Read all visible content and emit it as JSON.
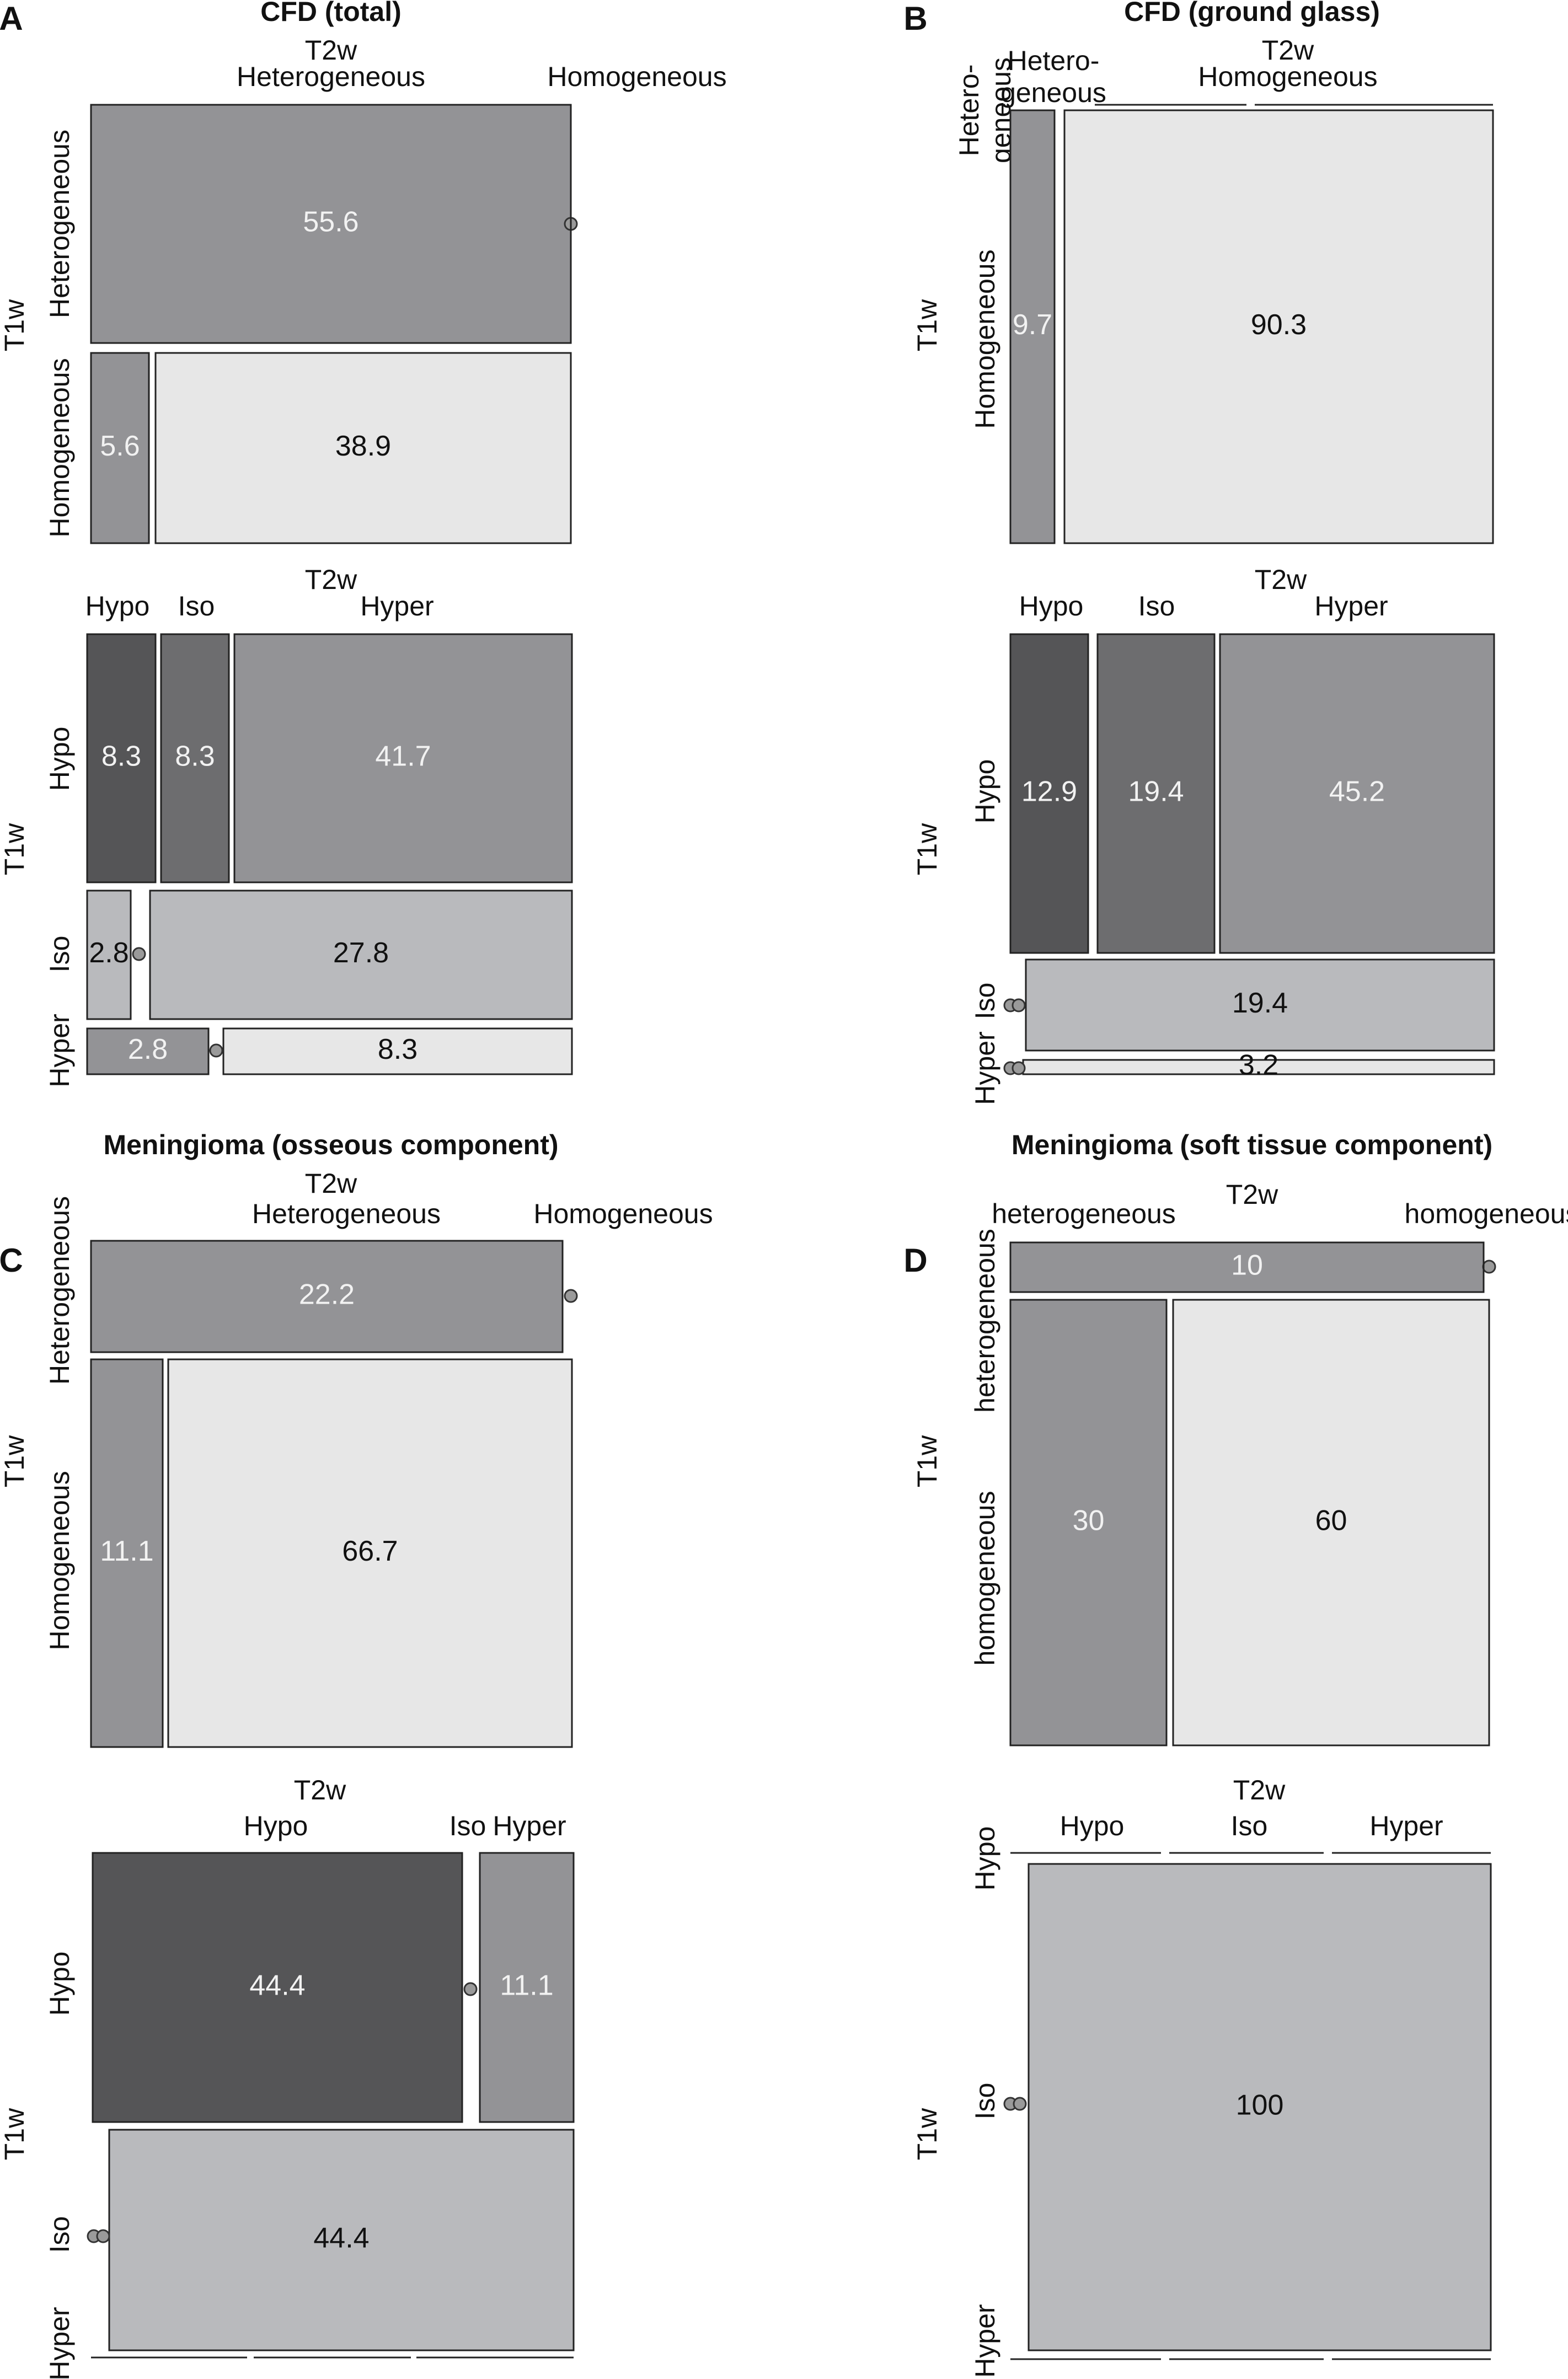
{
  "palette": {
    "darkest": "#555557",
    "dark": "#6d6d6f",
    "mid": "#939396",
    "light": "#b9babd",
    "lightest": "#e7e7e7",
    "text_on_dark": "#f2f2f2",
    "text_on_light": "#111111"
  },
  "chart_data": [
    {
      "panel": "A",
      "type": "mosaic",
      "title": "CFD (total)",
      "xlabel": "T2w",
      "ylabel": "T1w",
      "rows": [
        "Heterogeneous",
        "Homogeneous"
      ],
      "columns": [
        "Heterogeneous",
        "Homogeneous"
      ],
      "values": [
        [
          55.6,
          0
        ],
        [
          5.6,
          38.9
        ]
      ],
      "value_labels": [
        [
          "55.6",
          ""
        ],
        [
          "5.6",
          "38.9"
        ]
      ]
    },
    {
      "panel": "A",
      "type": "mosaic",
      "title": "",
      "xlabel": "T2w",
      "ylabel": "T1w",
      "rows": [
        "Hypo",
        "Iso",
        "Hyper"
      ],
      "columns": [
        "Hypo",
        "Iso",
        "Hyper"
      ],
      "values": [
        [
          8.3,
          8.3,
          41.7
        ],
        [
          2.8,
          0,
          27.8
        ],
        [
          2.8,
          0,
          8.3
        ]
      ],
      "value_labels": [
        [
          "8.3",
          "8.3",
          "41.7"
        ],
        [
          "2.8",
          "",
          "27.8"
        ],
        [
          "2.8",
          "",
          "8.3"
        ]
      ]
    },
    {
      "panel": "B",
      "type": "mosaic",
      "title": "CFD (ground glass)",
      "xlabel": "T2w",
      "ylabel": "T1w",
      "rows": [
        "Hetero-\ngeneous",
        "Homogeneous"
      ],
      "columns": [
        "Hetero-\ngeneous",
        "Homogeneous"
      ],
      "values": [
        [
          0,
          0
        ],
        [
          9.7,
          90.3
        ]
      ],
      "value_labels": [
        [
          "",
          ""
        ],
        [
          "9.7",
          "90.3"
        ]
      ]
    },
    {
      "panel": "B",
      "type": "mosaic",
      "title": "",
      "xlabel": "T2w",
      "ylabel": "T1w",
      "rows": [
        "Hypo",
        "Iso",
        "Hyper"
      ],
      "columns": [
        "Hypo",
        "Iso",
        "Hyper"
      ],
      "values": [
        [
          12.9,
          19.4,
          45.2
        ],
        [
          0,
          0,
          19.4
        ],
        [
          0,
          0,
          3.2
        ]
      ],
      "value_labels": [
        [
          "12.9",
          "19.4",
          "45.2"
        ],
        [
          "",
          "",
          "19.4"
        ],
        [
          "",
          "",
          "3.2"
        ]
      ]
    },
    {
      "panel": "C",
      "type": "mosaic",
      "title": "Meningioma (osseous component)",
      "xlabel": "T2w",
      "ylabel": "T1w",
      "rows": [
        "Heterogeneous",
        "Homogeneous"
      ],
      "columns": [
        "Heterogeneous",
        "Homogeneous"
      ],
      "values": [
        [
          22.2,
          0
        ],
        [
          11.1,
          66.7
        ]
      ],
      "value_labels": [
        [
          "22.2",
          ""
        ],
        [
          "11.1",
          "66.7"
        ]
      ]
    },
    {
      "panel": "C",
      "type": "mosaic",
      "title": "",
      "xlabel": "T2w",
      "ylabel": "T1w",
      "rows": [
        "Hypo",
        "Iso",
        "Hyper"
      ],
      "columns": [
        "Hypo",
        "Iso",
        "Hyper"
      ],
      "values": [
        [
          44.4,
          0,
          11.1
        ],
        [
          0,
          0,
          44.4
        ],
        [
          0,
          0,
          0
        ]
      ],
      "value_labels": [
        [
          "44.4",
          "",
          "11.1"
        ],
        [
          "",
          "",
          "44.4"
        ],
        [
          "",
          "",
          ""
        ]
      ]
    },
    {
      "panel": "D",
      "type": "mosaic",
      "title": "Meningioma (soft tissue component)",
      "xlabel": "T2w",
      "ylabel": "T1w",
      "rows": [
        "heterogeneous",
        "homogeneous"
      ],
      "columns": [
        "heterogeneous",
        "homogeneous"
      ],
      "values": [
        [
          10,
          0
        ],
        [
          30,
          60
        ]
      ],
      "value_labels": [
        [
          "10",
          ""
        ],
        [
          "30",
          "60"
        ]
      ]
    },
    {
      "panel": "D",
      "type": "mosaic",
      "title": "",
      "xlabel": "T2w",
      "ylabel": "T1w",
      "rows": [
        "Hypo",
        "Iso",
        "Hyper"
      ],
      "columns": [
        "Hypo",
        "Iso",
        "Hyper"
      ],
      "values": [
        [
          0,
          0,
          0
        ],
        [
          0,
          100,
          0
        ],
        [
          0,
          0,
          0
        ]
      ],
      "value_labels": [
        [
          "",
          "",
          ""
        ],
        [
          "",
          "100",
          ""
        ],
        [
          "",
          "",
          ""
        ]
      ]
    }
  ]
}
